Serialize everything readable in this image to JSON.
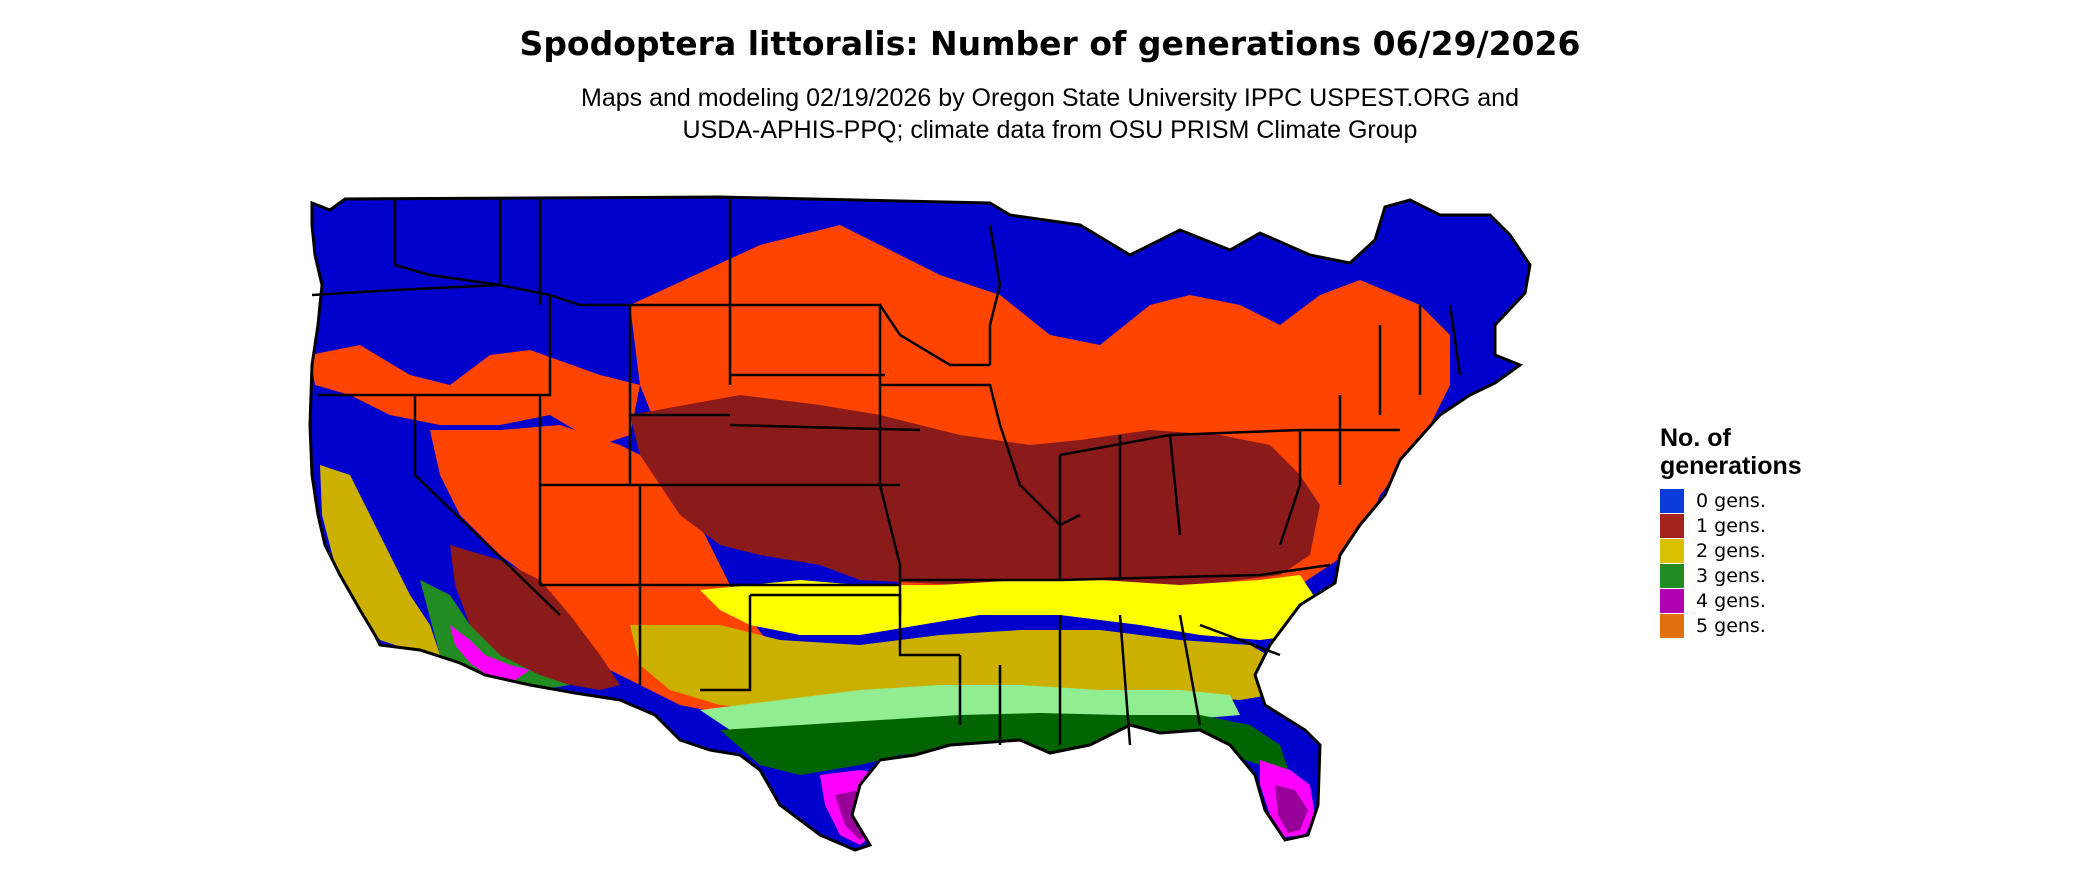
{
  "map": {
    "title": "Spodoptera littoralis: Number of generations 06/29/2026",
    "subtitle_lines": [
      "Maps and modeling 02/19/2026 by Oregon State University IPPC USPEST.ORG and",
      "USDA-APHIS-PPQ; climate data from OSU PRISM Climate Group"
    ],
    "region": "Contiguous United States",
    "colors": {
      "gen0": "#0000cc",
      "gen1_low": "#ff4400",
      "gen1_high": "#8b1a1a",
      "gen2_low": "#ffff00",
      "gen2_high": "#ccb000",
      "gen3_low": "#90ee90",
      "gen3_high": "#006400",
      "gen4_low": "#ff00ff",
      "gen4_high": "#990099",
      "gen5": "#e07010"
    }
  },
  "legend": {
    "title_lines": [
      "No. of",
      "generations"
    ],
    "items": [
      {
        "label": "0 gens.",
        "color": "#0c3bdc"
      },
      {
        "label": "1 gens.",
        "color": "#a3231c"
      },
      {
        "label": "2 gens.",
        "color": "#d9c000"
      },
      {
        "label": "3 gens.",
        "color": "#228b22"
      },
      {
        "label": "4 gens.",
        "color": "#b000b0"
      },
      {
        "label": "5 gens.",
        "color": "#e07010"
      }
    ]
  }
}
